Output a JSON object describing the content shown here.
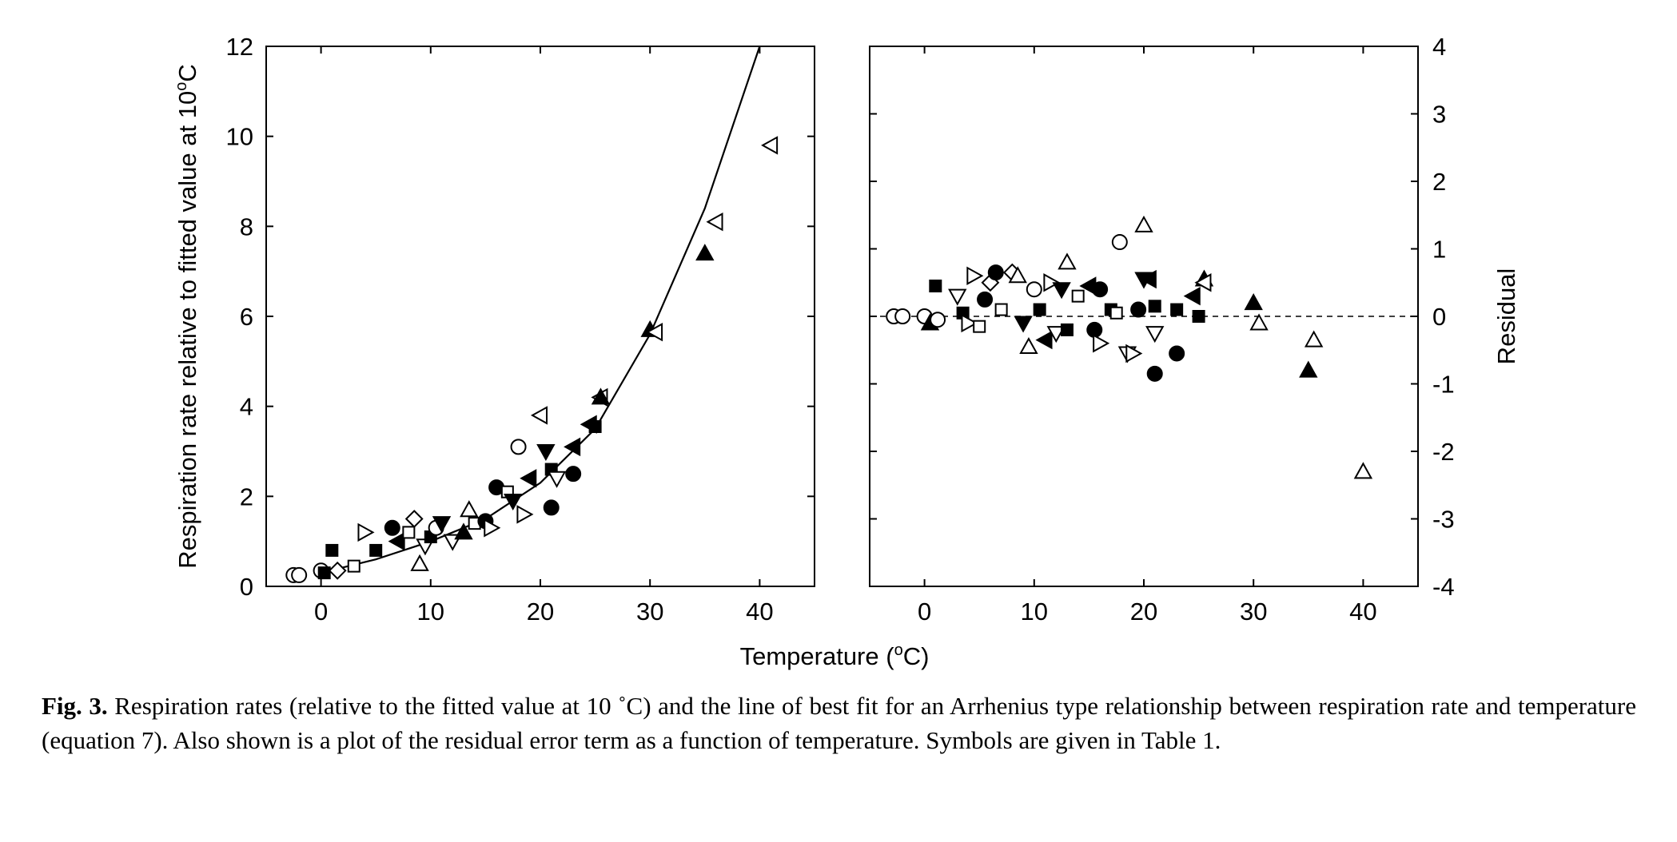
{
  "figure": {
    "left_panel": {
      "ylabel": "Respiration rate relative to fitted value at 10",
      "ylabel_unit": "C",
      "y_ticks": [
        "0",
        "2",
        "4",
        "6",
        "8",
        "10",
        "12"
      ],
      "x_ticks": [
        "0",
        "10",
        "20",
        "30",
        "40"
      ]
    },
    "right_panel": {
      "ylabel": "Residual",
      "y_ticks": [
        "4",
        "3",
        "2",
        "1",
        "0",
        "-1",
        "-2",
        "-3",
        "-4"
      ],
      "x_ticks": [
        "0",
        "10",
        "20",
        "30",
        "40"
      ]
    },
    "xlabel": "Temperature (",
    "xlabel_unit": "C)"
  },
  "caption": {
    "label": "Fig. 3.",
    "text": " Respiration rates (relative to the fitted value at 10 ˚C) and the line of best fit for an Arrhenius type relationship between respiration rate and temperature (equation 7). Also shown is a plot of the residual error term as a function of temperature. Symbols are given in Table 1."
  },
  "chart_data": [
    {
      "type": "scatter",
      "xlabel": "Temperature (°C)",
      "ylabel": "Respiration rate relative to fitted value at 10°C",
      "xlim": [
        -5,
        45
      ],
      "ylim": [
        0,
        12
      ],
      "fit_line": {
        "x": [
          0,
          5,
          10,
          15,
          20,
          25,
          30,
          35,
          40
        ],
        "y": [
          0.3,
          0.6,
          1.0,
          1.5,
          2.3,
          3.5,
          5.6,
          8.4,
          12.0
        ]
      },
      "points": [
        {
          "x": -2.5,
          "y": 0.25,
          "m": "circle",
          "f": false
        },
        {
          "x": -2.0,
          "y": 0.25,
          "m": "circle",
          "f": false
        },
        {
          "x": 0.0,
          "y": 0.35,
          "m": "circle",
          "f": false
        },
        {
          "x": 0.3,
          "y": 0.3,
          "m": "square",
          "f": true
        },
        {
          "x": 1.0,
          "y": 0.8,
          "m": "square",
          "f": true
        },
        {
          "x": 1.5,
          "y": 0.35,
          "m": "diamond",
          "f": false
        },
        {
          "x": 3.0,
          "y": 0.45,
          "m": "square",
          "f": false
        },
        {
          "x": 4.0,
          "y": 1.2,
          "m": "triR",
          "f": false
        },
        {
          "x": 5.0,
          "y": 0.8,
          "m": "square",
          "f": true
        },
        {
          "x": 6.5,
          "y": 1.3,
          "m": "circle",
          "f": true
        },
        {
          "x": 7.0,
          "y": 1.0,
          "m": "triL",
          "f": true
        },
        {
          "x": 8.0,
          "y": 1.2,
          "m": "square",
          "f": false
        },
        {
          "x": 8.5,
          "y": 1.5,
          "m": "diamond",
          "f": false
        },
        {
          "x": 9.0,
          "y": 0.5,
          "m": "triU",
          "f": false
        },
        {
          "x": 9.5,
          "y": 0.9,
          "m": "triD",
          "f": false
        },
        {
          "x": 10.0,
          "y": 1.1,
          "m": "square",
          "f": true
        },
        {
          "x": 10.5,
          "y": 1.3,
          "m": "circle",
          "f": false
        },
        {
          "x": 11.0,
          "y": 1.4,
          "m": "triD",
          "f": true
        },
        {
          "x": 12.0,
          "y": 1.0,
          "m": "triD",
          "f": false
        },
        {
          "x": 13.0,
          "y": 1.2,
          "m": "triU",
          "f": true
        },
        {
          "x": 13.5,
          "y": 1.7,
          "m": "triU",
          "f": false
        },
        {
          "x": 14.0,
          "y": 1.4,
          "m": "square",
          "f": false
        },
        {
          "x": 15.0,
          "y": 1.45,
          "m": "circle",
          "f": true
        },
        {
          "x": 15.5,
          "y": 1.3,
          "m": "triR",
          "f": false
        },
        {
          "x": 16.0,
          "y": 2.2,
          "m": "circle",
          "f": true
        },
        {
          "x": 17.0,
          "y": 2.1,
          "m": "square",
          "f": false
        },
        {
          "x": 17.5,
          "y": 1.9,
          "m": "triD",
          "f": true
        },
        {
          "x": 18.0,
          "y": 3.1,
          "m": "circle",
          "f": false
        },
        {
          "x": 18.5,
          "y": 1.6,
          "m": "triR",
          "f": false
        },
        {
          "x": 19.0,
          "y": 2.4,
          "m": "triL",
          "f": true
        },
        {
          "x": 20.0,
          "y": 3.8,
          "m": "triL",
          "f": false
        },
        {
          "x": 20.5,
          "y": 3.0,
          "m": "triD",
          "f": true
        },
        {
          "x": 21.0,
          "y": 2.6,
          "m": "square",
          "f": true
        },
        {
          "x": 21.0,
          "y": 1.75,
          "m": "circle",
          "f": true
        },
        {
          "x": 21.5,
          "y": 2.4,
          "m": "triD",
          "f": false
        },
        {
          "x": 23.0,
          "y": 2.5,
          "m": "circle",
          "f": true
        },
        {
          "x": 23.0,
          "y": 3.1,
          "m": "triL",
          "f": true
        },
        {
          "x": 24.5,
          "y": 3.6,
          "m": "triL",
          "f": true
        },
        {
          "x": 25.0,
          "y": 3.55,
          "m": "square",
          "f": true
        },
        {
          "x": 25.5,
          "y": 4.2,
          "m": "triL",
          "f": false
        },
        {
          "x": 25.5,
          "y": 4.2,
          "m": "triU",
          "f": true
        },
        {
          "x": 30.0,
          "y": 5.7,
          "m": "triU",
          "f": true
        },
        {
          "x": 30.5,
          "y": 5.65,
          "m": "triL",
          "f": false
        },
        {
          "x": 35.0,
          "y": 7.4,
          "m": "triU",
          "f": true
        },
        {
          "x": 36.0,
          "y": 8.1,
          "m": "triL",
          "f": false
        },
        {
          "x": 41.0,
          "y": 9.8,
          "m": "triL",
          "f": false
        }
      ]
    },
    {
      "type": "scatter",
      "xlabel": "Temperature (°C)",
      "ylabel": "Residual",
      "xlim": [
        -5,
        45
      ],
      "ylim": [
        -4,
        4
      ],
      "reference_line": {
        "y": 0,
        "style": "dashed"
      },
      "points": [
        {
          "x": -2.8,
          "y": 0.0,
          "m": "circle",
          "f": false
        },
        {
          "x": -2.0,
          "y": 0.0,
          "m": "circle",
          "f": false
        },
        {
          "x": 0.0,
          "y": 0.0,
          "m": "circle",
          "f": false
        },
        {
          "x": 0.5,
          "y": -0.1,
          "m": "triU",
          "f": true
        },
        {
          "x": 1.2,
          "y": -0.05,
          "m": "circle",
          "f": false
        },
        {
          "x": 1.0,
          "y": 0.45,
          "m": "square",
          "f": true
        },
        {
          "x": 3.0,
          "y": 0.3,
          "m": "triD",
          "f": false
        },
        {
          "x": 3.5,
          "y": 0.05,
          "m": "square",
          "f": true
        },
        {
          "x": 4.0,
          "y": -0.1,
          "m": "triR",
          "f": false
        },
        {
          "x": 4.5,
          "y": 0.6,
          "m": "triR",
          "f": false
        },
        {
          "x": 5.0,
          "y": -0.15,
          "m": "square",
          "f": false
        },
        {
          "x": 5.5,
          "y": 0.25,
          "m": "circle",
          "f": true
        },
        {
          "x": 6.0,
          "y": 0.5,
          "m": "diamond",
          "f": false
        },
        {
          "x": 6.5,
          "y": 0.65,
          "m": "circle",
          "f": true
        },
        {
          "x": 7.0,
          "y": 0.1,
          "m": "square",
          "f": false
        },
        {
          "x": 8.0,
          "y": 0.65,
          "m": "diamond",
          "f": false
        },
        {
          "x": 8.5,
          "y": 0.6,
          "m": "triU",
          "f": false
        },
        {
          "x": 9.0,
          "y": -0.1,
          "m": "triD",
          "f": true
        },
        {
          "x": 9.5,
          "y": -0.45,
          "m": "triU",
          "f": false
        },
        {
          "x": 10.0,
          "y": 0.4,
          "m": "circle",
          "f": false
        },
        {
          "x": 10.5,
          "y": 0.1,
          "m": "square",
          "f": true
        },
        {
          "x": 11.0,
          "y": -0.35,
          "m": "triL",
          "f": true
        },
        {
          "x": 11.5,
          "y": 0.5,
          "m": "triR",
          "f": false
        },
        {
          "x": 12.0,
          "y": -0.25,
          "m": "triD",
          "f": false
        },
        {
          "x": 12.5,
          "y": 0.4,
          "m": "triD",
          "f": true
        },
        {
          "x": 13.0,
          "y": 0.8,
          "m": "triU",
          "f": false
        },
        {
          "x": 13.0,
          "y": -0.2,
          "m": "square",
          "f": true
        },
        {
          "x": 14.0,
          "y": 0.3,
          "m": "square",
          "f": false
        },
        {
          "x": 15.0,
          "y": 0.45,
          "m": "triL",
          "f": true
        },
        {
          "x": 15.5,
          "y": -0.2,
          "m": "circle",
          "f": true
        },
        {
          "x": 16.0,
          "y": 0.4,
          "m": "circle",
          "f": true
        },
        {
          "x": 16.0,
          "y": -0.4,
          "m": "triR",
          "f": false
        },
        {
          "x": 17.0,
          "y": 0.1,
          "m": "square",
          "f": true
        },
        {
          "x": 17.5,
          "y": 0.05,
          "m": "square",
          "f": false
        },
        {
          "x": 17.8,
          "y": 1.1,
          "m": "circle",
          "f": false
        },
        {
          "x": 18.5,
          "y": -0.55,
          "m": "triD",
          "f": false
        },
        {
          "x": 19.0,
          "y": -0.55,
          "m": "triR",
          "f": false
        },
        {
          "x": 19.5,
          "y": 0.1,
          "m": "circle",
          "f": true
        },
        {
          "x": 20.0,
          "y": 1.35,
          "m": "triU",
          "f": false
        },
        {
          "x": 20.0,
          "y": 0.55,
          "m": "triD",
          "f": true
        },
        {
          "x": 20.5,
          "y": 0.55,
          "m": "triL",
          "f": true
        },
        {
          "x": 21.0,
          "y": -0.85,
          "m": "circle",
          "f": true
        },
        {
          "x": 21.0,
          "y": -0.25,
          "m": "triD",
          "f": false
        },
        {
          "x": 21.0,
          "y": 0.15,
          "m": "square",
          "f": true
        },
        {
          "x": 23.0,
          "y": -0.55,
          "m": "circle",
          "f": true
        },
        {
          "x": 23.0,
          "y": 0.1,
          "m": "square",
          "f": true
        },
        {
          "x": 24.5,
          "y": 0.3,
          "m": "triL",
          "f": true
        },
        {
          "x": 25.0,
          "y": 0.0,
          "m": "square",
          "f": true
        },
        {
          "x": 25.5,
          "y": 0.55,
          "m": "triU",
          "f": true
        },
        {
          "x": 25.5,
          "y": 0.5,
          "m": "triL",
          "f": false
        },
        {
          "x": 30.0,
          "y": 0.2,
          "m": "triU",
          "f": true
        },
        {
          "x": 30.5,
          "y": -0.1,
          "m": "triU",
          "f": false
        },
        {
          "x": 35.0,
          "y": -0.8,
          "m": "triU",
          "f": true
        },
        {
          "x": 35.5,
          "y": -0.35,
          "m": "triU",
          "f": false
        },
        {
          "x": 40.0,
          "y": -2.3,
          "m": "triU",
          "f": false
        }
      ]
    }
  ]
}
